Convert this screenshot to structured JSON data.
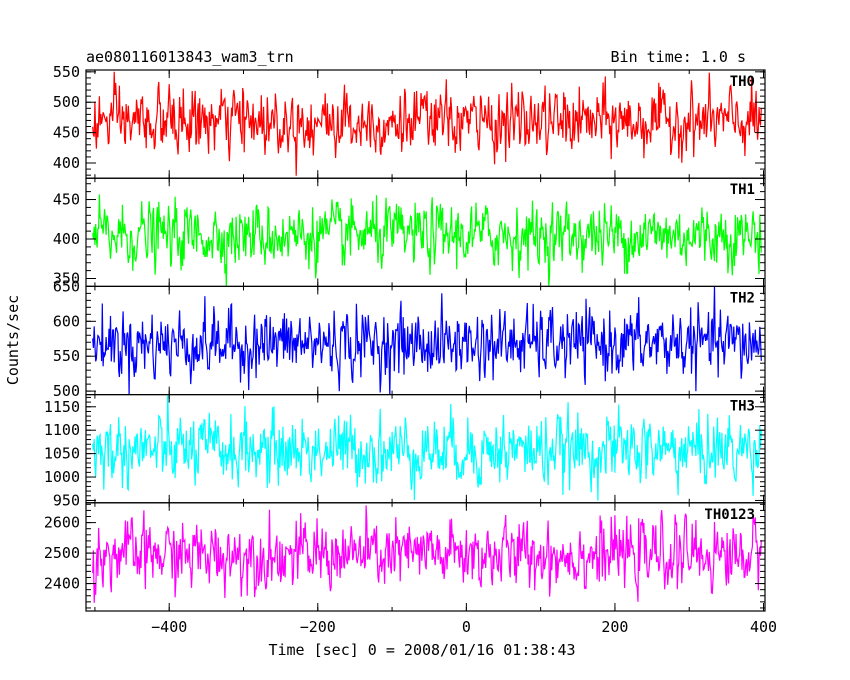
{
  "chart_data": {
    "type": "line",
    "title": "ae080116013843_wam3_trn",
    "subtitle": "Bin time: 1.0 s",
    "xlabel": "Time [sec] 0 = 2008/01/16 01:38:43",
    "ylabel": "Counts/sec",
    "xlim": [
      -512,
      402
    ],
    "x_ticks": [
      -400,
      -200,
      0,
      200,
      400
    ],
    "x_tick_labels": [
      "−400",
      "−200",
      "0",
      "200",
      "400"
    ],
    "panels": [
      {
        "name": "TH0",
        "color": "#ff0000",
        "ylim": [
          375,
          553
        ],
        "y_ticks": [
          400,
          450,
          500,
          550
        ],
        "mean": 468,
        "sigma": 25,
        "x_range": [
          -503,
          397
        ]
      },
      {
        "name": "TH1",
        "color": "#00ff00",
        "ylim": [
          340,
          477
        ],
        "y_ticks": [
          350,
          400,
          450
        ],
        "mean": 405,
        "sigma": 19,
        "x_range": [
          -503,
          397
        ]
      },
      {
        "name": "TH2",
        "color": "#0000ff",
        "ylim": [
          495,
          650
        ],
        "y_ticks": [
          500,
          550,
          600,
          650
        ],
        "mean": 568,
        "sigma": 23,
        "x_range": [
          -503,
          397
        ]
      },
      {
        "name": "TH3",
        "color": "#00ffff",
        "ylim": [
          945,
          1176
        ],
        "y_ticks": [
          950,
          1000,
          1050,
          1100,
          1150
        ],
        "mean": 1058,
        "sigma": 35,
        "x_range": [
          -503,
          397
        ]
      },
      {
        "name": "TH0123",
        "color": "#ff00ff",
        "ylim": [
          2310,
          2665
        ],
        "y_ticks": [
          2400,
          2500,
          2600
        ],
        "mean": 2495,
        "sigma": 52,
        "x_range": [
          -503,
          397
        ]
      }
    ]
  }
}
